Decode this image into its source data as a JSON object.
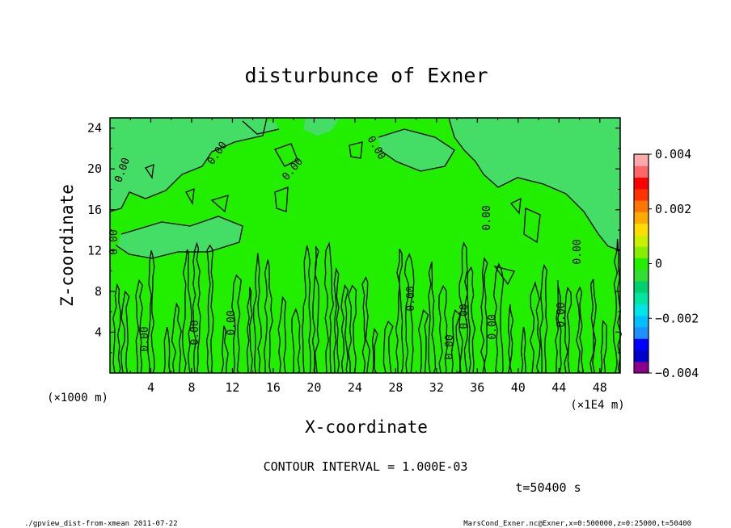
{
  "chart_data": {
    "type": "heatmap",
    "title": "disturbunce of Exner",
    "xlabel": "X-coordinate",
    "ylabel": "Z-coordinate",
    "x_unit": "(×1E4 m)",
    "y_unit": "(×1000 m)",
    "xlim": [
      0,
      50
    ],
    "ylim": [
      0,
      25
    ],
    "x_ticks": [
      "4",
      "8",
      "12",
      "16",
      "20",
      "24",
      "28",
      "32",
      "36",
      "40",
      "44",
      "48"
    ],
    "y_ticks": [
      "4",
      "8",
      "12",
      "16",
      "20",
      "24"
    ],
    "contour_interval_text": "CONTOUR INTERVAL = 1.000E-03",
    "time_text": "t=50400 s",
    "contour_label": "0.00",
    "colorbar": {
      "range": [
        -0.004,
        0.004
      ],
      "tick_labels": [
        "0.004",
        "0.002",
        "0",
        "−0.002",
        "−0.004"
      ],
      "colors": [
        "#8b008b",
        "#0000cd",
        "#0000ff",
        "#1e90ff",
        "#00bfff",
        "#00e5e5",
        "#00e5a0",
        "#00d070",
        "#33dd33",
        "#22ee00",
        "#88ee00",
        "#ccee00",
        "#ffdd00",
        "#ffaa00",
        "#ff7700",
        "#ff3300",
        "#ff0000",
        "#ff6666",
        "#ffaaaa"
      ]
    },
    "field": {
      "background_color": "#22ee00",
      "light_region_color": "#44dd66"
    }
  },
  "footer": {
    "left": "./gpview_dist-from-xmean   2011-07-22",
    "right": "MarsCond_Exner.nc@Exner,x=0:500000,z=0:25000,t=50400"
  }
}
